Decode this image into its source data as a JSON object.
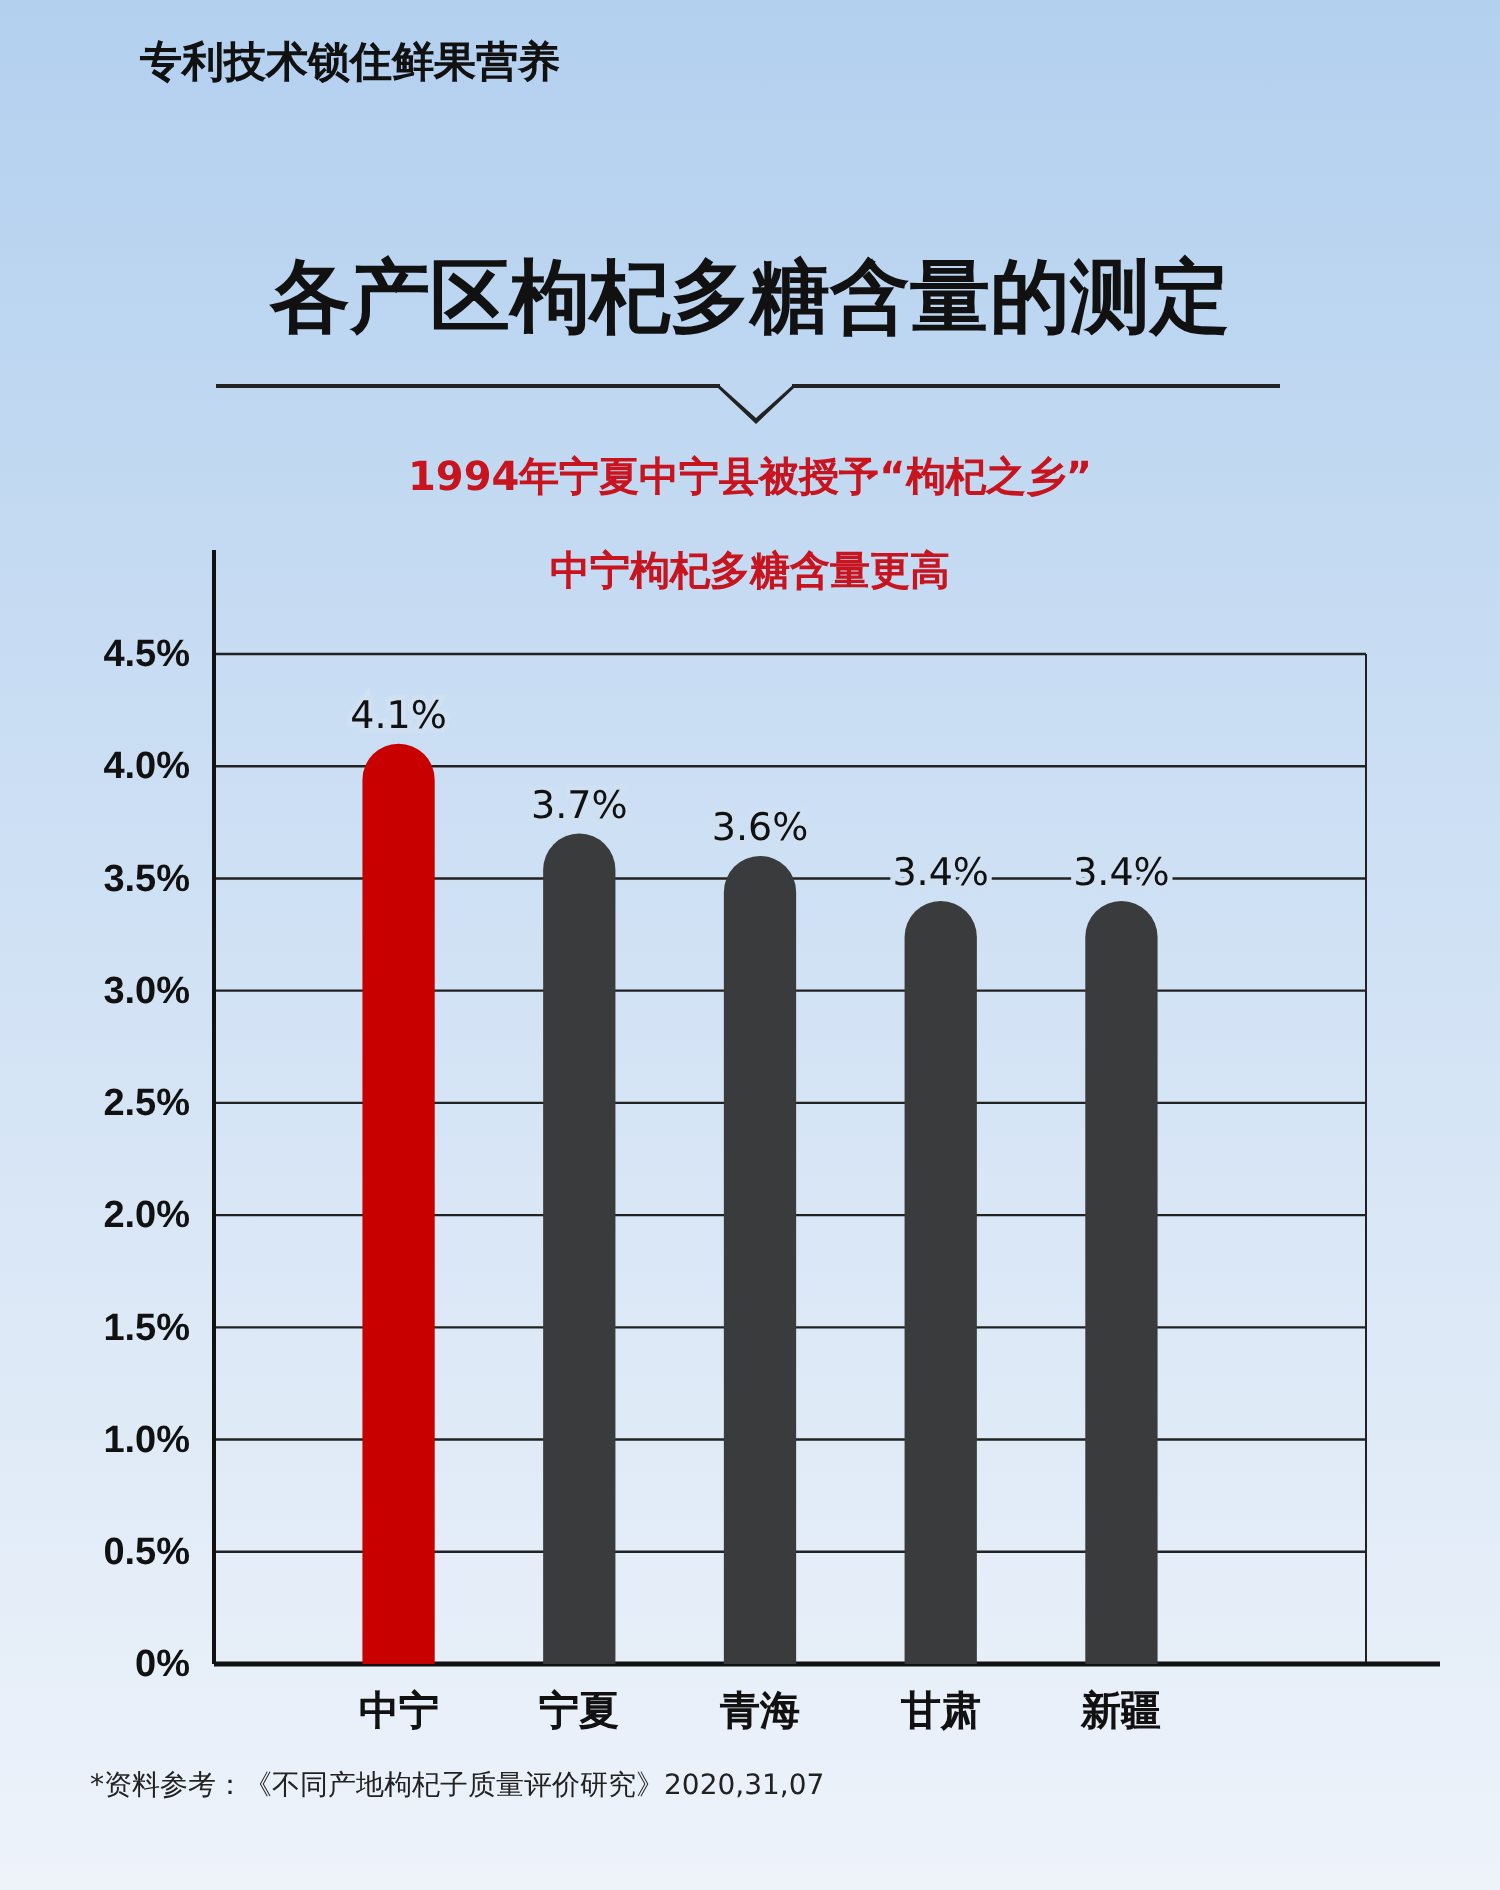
{
  "chart_data": {
    "type": "bar",
    "title": "各产区枸杞多糖含量的测定",
    "subtitle": "1994年宁夏中宁县被授予“枸杞之乡”",
    "annotations": [
      "专利技术锁住鲜果营养",
      "中宁枸杞多糖含量更高",
      "*资料参考：《不同产地枸杞子质量评价研究》2020,31,07"
    ],
    "categories": [
      "中宁",
      "宁夏",
      "青海",
      "甘肃",
      "新疆"
    ],
    "values": [
      4.1,
      3.7,
      3.6,
      3.4,
      3.4
    ],
    "colors": [
      "#c80000",
      "#3a3b3d",
      "#3a3b3d",
      "#3a3b3d",
      "#3a3b3d"
    ],
    "value_labels": [
      "4.1%",
      "3.7%",
      "3.6%",
      "3.4%",
      "3.4%"
    ],
    "ylim": [
      0,
      4.5
    ],
    "yticks": [
      {
        "value": 0,
        "label": "0%"
      },
      {
        "value": 0.5,
        "label": "0.5%"
      },
      {
        "value": 1,
        "label": "1.0%"
      },
      {
        "value": 1.5,
        "label": "1.5%"
      },
      {
        "value": 2,
        "label": "2.0%"
      },
      {
        "value": 2.5,
        "label": "2.5%"
      },
      {
        "value": 3,
        "label": "3.0%"
      },
      {
        "value": 3.5,
        "label": "3.5%"
      },
      {
        "value": 4,
        "label": "4.0%"
      },
      {
        "value": 4.5,
        "label": "4.5%"
      }
    ],
    "grid": "y"
  }
}
